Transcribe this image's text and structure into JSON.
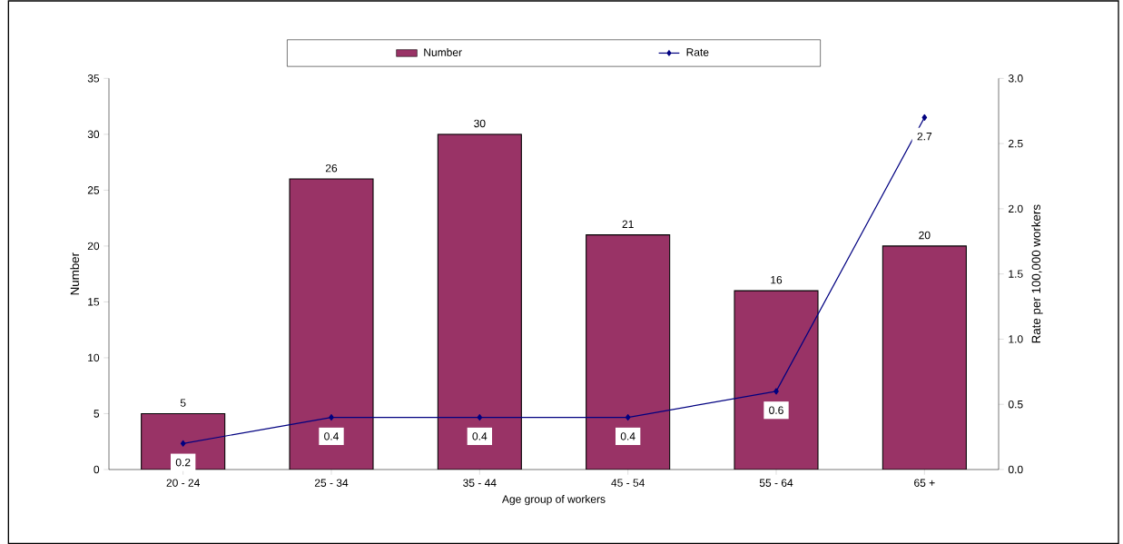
{
  "chart_data": {
    "type": "bar",
    "xlabel": "Age group of workers",
    "ylabel": "Number",
    "y2label": "Rate per 100,000 workers",
    "categories": [
      "20 - 24",
      "25 - 34",
      "35 - 44",
      "45 - 54",
      "55 - 64",
      "65 +"
    ],
    "series": [
      {
        "name": "Number",
        "color": "#993366",
        "values": [
          5,
          26,
          30,
          21,
          16,
          20
        ]
      },
      {
        "name": "Rate",
        "type": "line",
        "axis": "y2",
        "color": "#000080",
        "marker": "diamond",
        "values": [
          0.2,
          0.4,
          0.4,
          0.4,
          0.6,
          2.7
        ]
      }
    ],
    "ylim": [
      0,
      35
    ],
    "yticks": [
      0,
      5,
      10,
      15,
      20,
      25,
      30,
      35
    ],
    "y2lim": [
      0,
      3
    ],
    "y2ticks": [
      {
        "value": 0,
        "label": "0.0"
      },
      {
        "value": 0.5,
        "label": "0.5"
      },
      {
        "value": 1,
        "label": "1.0"
      },
      {
        "value": 1.5,
        "label": "1.5"
      },
      {
        "value": 2,
        "label": "2.0"
      },
      {
        "value": 2.5,
        "label": "2.5"
      },
      {
        "value": 3,
        "label": "3.0"
      }
    ],
    "data_labels": true,
    "legend": "top",
    "grid": false
  }
}
